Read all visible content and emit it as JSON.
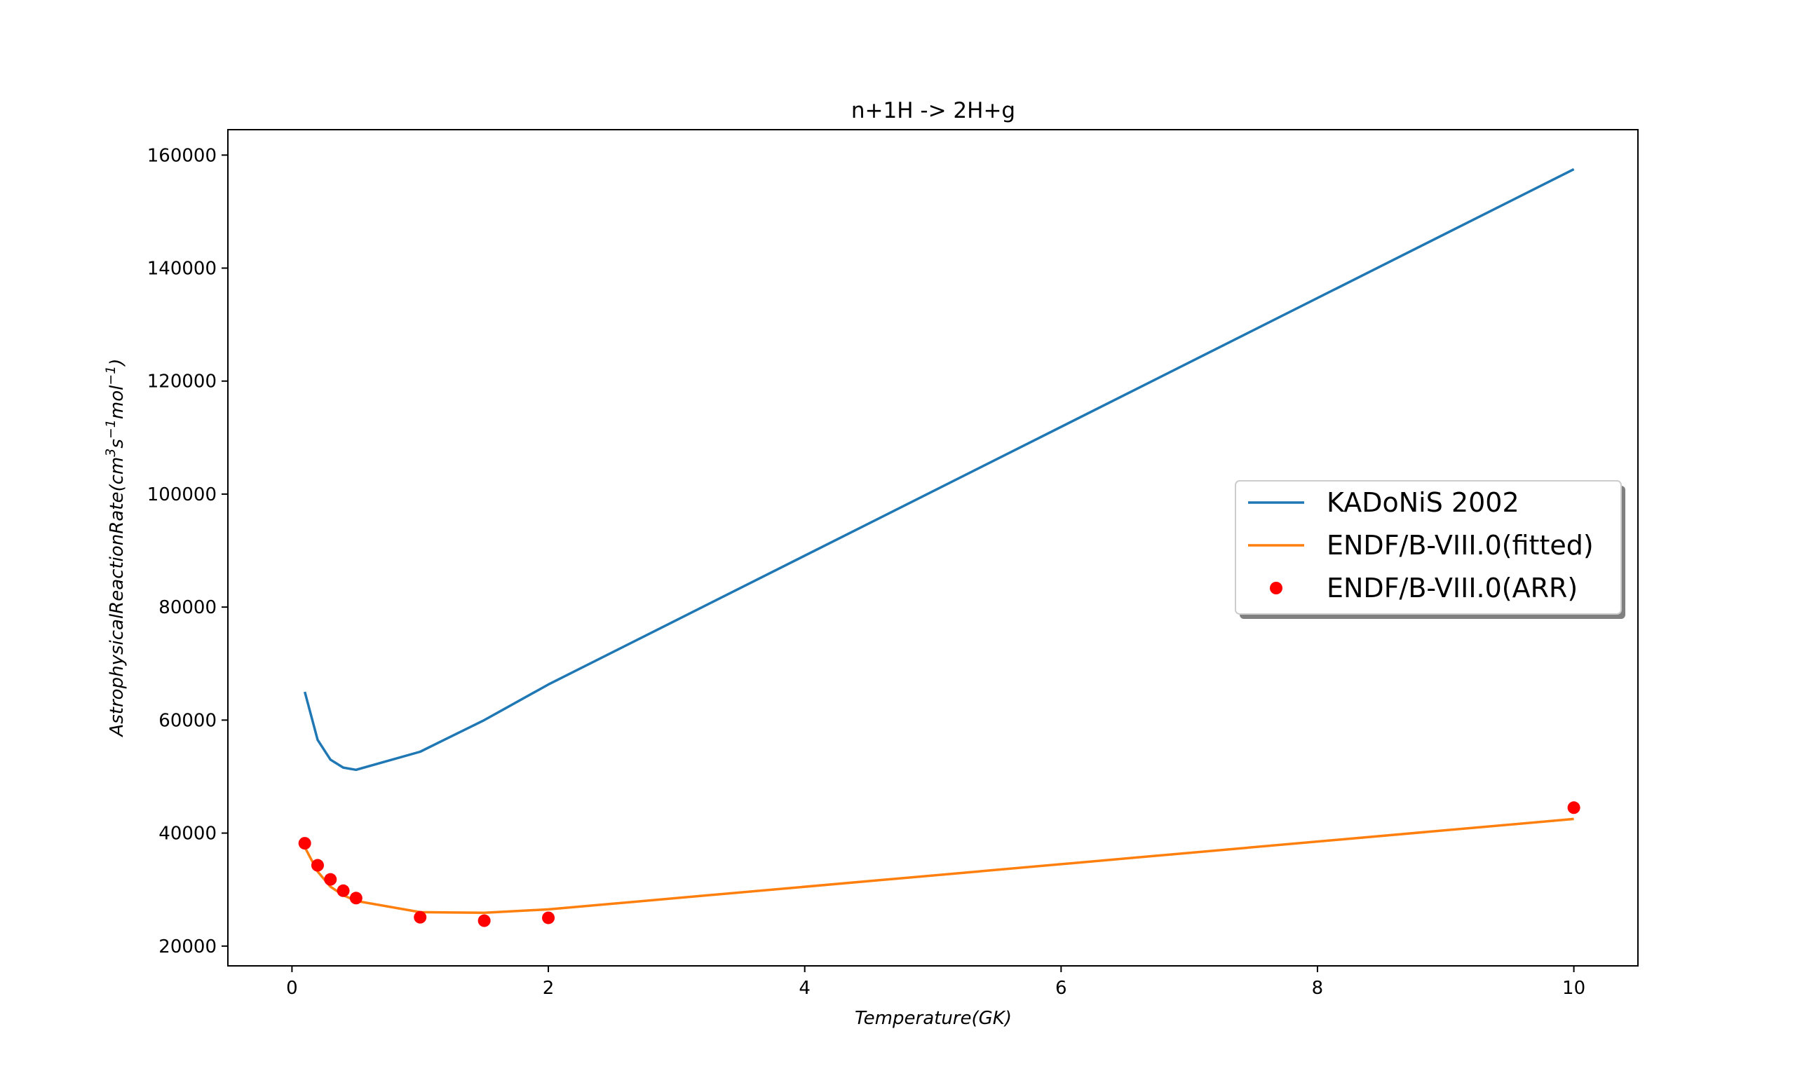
{
  "chart_data": {
    "type": "line",
    "title": "n+1H -> 2H+g",
    "xlabel": "Temperature(GK)",
    "ylabel": "AstrophysicalReactionRate(cm^3 s^-1 mol^-1)",
    "xlim": [
      -0.5,
      10.5
    ],
    "ylim": [
      16500,
      164500
    ],
    "xticks": [
      0,
      2,
      4,
      6,
      8,
      10
    ],
    "yticks": [
      20000,
      40000,
      60000,
      80000,
      100000,
      120000,
      140000,
      160000
    ],
    "grid": false,
    "legend_position": "center-right",
    "series": [
      {
        "name": "KADoNiS 2002",
        "kind": "line",
        "color": "#1f77b4",
        "x": [
          0.1,
          0.2,
          0.3,
          0.4,
          0.5,
          1.0,
          1.5,
          2.0,
          10.0
        ],
        "y": [
          65000,
          56500,
          53000,
          51600,
          51200,
          54400,
          60000,
          66300,
          157500
        ]
      },
      {
        "name": "ENDF/B-VIII.0(fitted)",
        "kind": "line",
        "color": "#ff7f0e",
        "x": [
          0.1,
          0.2,
          0.3,
          0.4,
          0.5,
          1.0,
          1.5,
          2.0,
          10.0
        ],
        "y": [
          37500,
          33200,
          30500,
          29000,
          28000,
          26000,
          25900,
          26500,
          42500
        ]
      },
      {
        "name": "ENDF/B-VIII.0(ARR)",
        "kind": "scatter",
        "color": "#ff0000",
        "x": [
          0.1,
          0.2,
          0.3,
          0.4,
          0.5,
          1.0,
          1.5,
          2.0,
          10.0
        ],
        "y": [
          38200,
          34300,
          31800,
          29800,
          28500,
          25100,
          24500,
          25000,
          44500
        ]
      }
    ]
  }
}
